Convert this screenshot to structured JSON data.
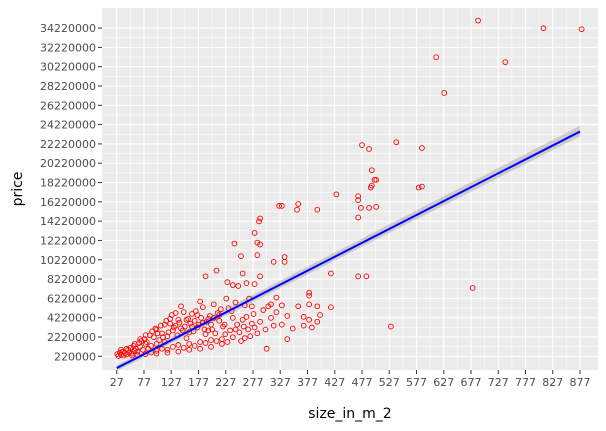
{
  "chart_data": {
    "type": "scatter",
    "title": "",
    "xlabel": "size_in_m_2",
    "ylabel": "price",
    "xlim": [
      0,
      910
    ],
    "ylim": [
      -1200000,
      36300000
    ],
    "x_ticks": [
      27,
      77,
      127,
      177,
      227,
      277,
      327,
      377,
      427,
      477,
      527,
      577,
      627,
      677,
      727,
      777,
      827,
      877
    ],
    "x_tick_labels": [
      "27",
      "77",
      "127",
      "177",
      "227",
      "277",
      "327",
      "377",
      "427",
      "477",
      "527",
      "577",
      "627",
      "677",
      "727",
      "777",
      "827",
      "877"
    ],
    "y_ticks": [
      220000,
      2220000,
      4220000,
      6220000,
      8220000,
      10220000,
      12220000,
      14220000,
      16220000,
      18220000,
      20220000,
      22220000,
      24220000,
      26220000,
      28220000,
      30220000,
      32220000,
      34220000
    ],
    "y_tick_labels": [
      "220000",
      "2220000",
      "4220000",
      "6220000",
      "8220000",
      "10220000",
      "12220000",
      "14220000",
      "16220000",
      "18220000",
      "20220000",
      "22220000",
      "24220000",
      "26220000",
      "28220000",
      "30220000",
      "32220000",
      "34220000"
    ],
    "points": [
      [
        690,
        35000000
      ],
      [
        810,
        34200000
      ],
      [
        880,
        34100000
      ],
      [
        740,
        30700000
      ],
      [
        613,
        31200000
      ],
      [
        628,
        27500000
      ],
      [
        540,
        22400000
      ],
      [
        477,
        22100000
      ],
      [
        490,
        21700000
      ],
      [
        587,
        21800000
      ],
      [
        495,
        19500000
      ],
      [
        495,
        17900000
      ],
      [
        493,
        17700000
      ],
      [
        500,
        18500000
      ],
      [
        503,
        18500000
      ],
      [
        581,
        17700000
      ],
      [
        587,
        17800000
      ],
      [
        430,
        17000000
      ],
      [
        470,
        16800000
      ],
      [
        470,
        16400000
      ],
      [
        490,
        15600000
      ],
      [
        503,
        15700000
      ],
      [
        475,
        15600000
      ],
      [
        470,
        14600000
      ],
      [
        330,
        15800000
      ],
      [
        325,
        15800000
      ],
      [
        358,
        15400000
      ],
      [
        360,
        16000000
      ],
      [
        395,
        15400000
      ],
      [
        290,
        14500000
      ],
      [
        288,
        14200000
      ],
      [
        280,
        13000000
      ],
      [
        285,
        12000000
      ],
      [
        243,
        11900000
      ],
      [
        290,
        11800000
      ],
      [
        255,
        10600000
      ],
      [
        285,
        10700000
      ],
      [
        315,
        10000000
      ],
      [
        335,
        10000000
      ],
      [
        335,
        10500000
      ],
      [
        420,
        8800000
      ],
      [
        470,
        8500000
      ],
      [
        485,
        8500000
      ],
      [
        680,
        7300000
      ],
      [
        258,
        8800000
      ],
      [
        190,
        8500000
      ],
      [
        210,
        9100000
      ],
      [
        230,
        7900000
      ],
      [
        265,
        7800000
      ],
      [
        240,
        7600000
      ],
      [
        250,
        7500000
      ],
      [
        280,
        7700000
      ],
      [
        290,
        8500000
      ],
      [
        380,
        6800000
      ],
      [
        380,
        6500000
      ],
      [
        320,
        6300000
      ],
      [
        330,
        5500000
      ],
      [
        380,
        5600000
      ],
      [
        420,
        5300000
      ],
      [
        530,
        3300000
      ],
      [
        360,
        5400000
      ],
      [
        395,
        5400000
      ],
      [
        305,
        5400000
      ],
      [
        310,
        5600000
      ],
      [
        296,
        5000000
      ],
      [
        320,
        4800000
      ],
      [
        340,
        4400000
      ],
      [
        370,
        4300000
      ],
      [
        380,
        4000000
      ],
      [
        400,
        4500000
      ],
      [
        395,
        3800000
      ],
      [
        370,
        3400000
      ],
      [
        350,
        3100000
      ],
      [
        385,
        3200000
      ],
      [
        330,
        3500000
      ],
      [
        340,
        2000000
      ],
      [
        302,
        1000000
      ],
      [
        310,
        4200000
      ],
      [
        290,
        3800000
      ],
      [
        280,
        3200000
      ],
      [
        275,
        3600000
      ],
      [
        265,
        4300000
      ],
      [
        285,
        2600000
      ],
      [
        262,
        2100000
      ],
      [
        255,
        1800000
      ],
      [
        245,
        3000000
      ],
      [
        240,
        4200000
      ],
      [
        232,
        5200000
      ],
      [
        228,
        6200000
      ],
      [
        218,
        5100000
      ],
      [
        212,
        4700000
      ],
      [
        205,
        4200000
      ],
      [
        200,
        3500000
      ],
      [
        195,
        2900000
      ],
      [
        190,
        2500000
      ],
      [
        185,
        5300000
      ],
      [
        180,
        5900000
      ],
      [
        175,
        4500000
      ],
      [
        170,
        3900000
      ],
      [
        165,
        3300000
      ],
      [
        160,
        2700000
      ],
      [
        155,
        2100000
      ],
      [
        150,
        4800000
      ],
      [
        145,
        5400000
      ],
      [
        140,
        4000000
      ],
      [
        135,
        3400000
      ],
      [
        130,
        2900000
      ],
      [
        125,
        3600000
      ],
      [
        120,
        2300000
      ],
      [
        115,
        1700000
      ],
      [
        110,
        2600000
      ],
      [
        105,
        1900000
      ],
      [
        100,
        1500000
      ],
      [
        95,
        2200000
      ],
      [
        90,
        1300000
      ],
      [
        85,
        1000000
      ],
      [
        80,
        1500000
      ],
      [
        75,
        900000
      ],
      [
        70,
        1200000
      ],
      [
        65,
        700000
      ],
      [
        60,
        800000
      ],
      [
        55,
        500000
      ],
      [
        50,
        600000
      ],
      [
        45,
        400000
      ],
      [
        40,
        300000
      ],
      [
        35,
        350000
      ],
      [
        30,
        250000
      ],
      [
        28,
        450000
      ],
      [
        33,
        600000
      ],
      [
        38,
        700000
      ],
      [
        42,
        550000
      ],
      [
        48,
        900000
      ],
      [
        52,
        1100000
      ],
      [
        58,
        1300000
      ],
      [
        62,
        1000000
      ],
      [
        68,
        1600000
      ],
      [
        72,
        1800000
      ],
      [
        78,
        2000000
      ],
      [
        82,
        1700000
      ],
      [
        88,
        2400000
      ],
      [
        92,
        2800000
      ],
      [
        98,
        3100000
      ],
      [
        102,
        2600000
      ],
      [
        108,
        3400000
      ],
      [
        112,
        2200000
      ],
      [
        118,
        3900000
      ],
      [
        122,
        2700000
      ],
      [
        128,
        4500000
      ],
      [
        132,
        3200000
      ],
      [
        138,
        2400000
      ],
      [
        142,
        3700000
      ],
      [
        148,
        2900000
      ],
      [
        152,
        3300000
      ],
      [
        158,
        4100000
      ],
      [
        162,
        3600000
      ],
      [
        168,
        2800000
      ],
      [
        172,
        4900000
      ],
      [
        178,
        3500000
      ],
      [
        182,
        4200000
      ],
      [
        188,
        3000000
      ],
      [
        192,
        3800000
      ],
      [
        198,
        4400000
      ],
      [
        202,
        3000000
      ],
      [
        208,
        2600000
      ],
      [
        215,
        3900000
      ],
      [
        222,
        3300000
      ],
      [
        226,
        2500000
      ],
      [
        235,
        2900000
      ],
      [
        248,
        3500000
      ],
      [
        252,
        2700000
      ],
      [
        258,
        4000000
      ],
      [
        268,
        3000000
      ],
      [
        272,
        2300000
      ],
      [
        278,
        4600000
      ],
      [
        300,
        3000000
      ],
      [
        315,
        3400000
      ],
      [
        90,
        600000
      ],
      [
        100,
        800000
      ],
      [
        110,
        1000000
      ],
      [
        120,
        900000
      ],
      [
        130,
        1200000
      ],
      [
        140,
        1400000
      ],
      [
        150,
        1100000
      ],
      [
        160,
        1500000
      ],
      [
        170,
        1300000
      ],
      [
        180,
        1700000
      ],
      [
        190,
        1600000
      ],
      [
        200,
        1900000
      ],
      [
        210,
        1800000
      ],
      [
        220,
        2000000
      ],
      [
        230,
        1700000
      ],
      [
        60,
        1500000
      ],
      [
        70,
        2000000
      ],
      [
        80,
        2400000
      ],
      [
        100,
        3000000
      ],
      [
        115,
        3500000
      ],
      [
        125,
        4100000
      ],
      [
        135,
        4700000
      ],
      [
        145,
        3100000
      ],
      [
        155,
        4000000
      ],
      [
        165,
        4600000
      ],
      [
        175,
        3200000
      ],
      [
        185,
        3700000
      ],
      [
        195,
        4100000
      ],
      [
        205,
        5600000
      ],
      [
        215,
        4500000
      ],
      [
        225,
        3500000
      ],
      [
        238,
        4900000
      ],
      [
        245,
        5800000
      ],
      [
        262,
        5500000
      ],
      [
        270,
        6200000
      ],
      [
        275,
        5400000
      ],
      [
        260,
        3300000
      ],
      [
        240,
        2200000
      ],
      [
        220,
        1500000
      ],
      [
        200,
        1200000
      ],
      [
        180,
        1000000
      ],
      [
        160,
        900000
      ],
      [
        140,
        700000
      ],
      [
        120,
        600000
      ],
      [
        100,
        500000
      ],
      [
        80,
        450000
      ],
      [
        65,
        350000
      ],
      [
        55,
        300000
      ],
      [
        45,
        1000000
      ],
      [
        35,
        900000
      ]
    ],
    "trend_line": {
      "x": [
        27,
        877
      ],
      "y": [
        -1000000,
        23500000
      ]
    },
    "confidence_band": {
      "x": [
        27,
        877
      ],
      "lower": [
        -1300000,
        23000000
      ],
      "upper": [
        -700000,
        24100000
      ]
    },
    "grid": true,
    "point_color": "#ff0000",
    "line_color": "#0000ff",
    "band_color": "#999999",
    "panel_background": "#ebebeb",
    "grid_color": "#ffffff"
  }
}
